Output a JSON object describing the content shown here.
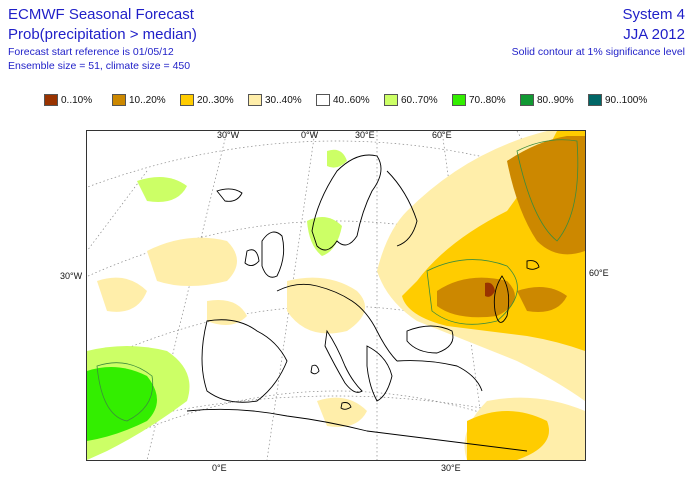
{
  "header": {
    "title": "ECMWF Seasonal Forecast",
    "subtitle": "Prob(precipitation > median)",
    "start_ref": "Forecast start reference is 01/05/12",
    "ensemble": "Ensemble size = 51, climate size = 450",
    "system": "System 4",
    "season": "JJA 2012",
    "contour_note": "Solid contour at 1% significance level"
  },
  "legend": [
    {
      "label": "0..10%",
      "color": "#993300"
    },
    {
      "label": "10..20%",
      "color": "#cc8800"
    },
    {
      "label": "20..30%",
      "color": "#ffcc00"
    },
    {
      "label": "30..40%",
      "color": "#ffeeaa"
    },
    {
      "label": "40..60%",
      "color": "#ffffff"
    },
    {
      "label": "60..70%",
      "color": "#ccff66"
    },
    {
      "label": "70..80%",
      "color": "#33ee00"
    },
    {
      "label": "80..90%",
      "color": "#119933"
    },
    {
      "label": "90..100%",
      "color": "#006666"
    }
  ],
  "grid_labels": {
    "top_30w": "30°W",
    "top_0w": "0°W",
    "top_30e": "30°E",
    "top_60e": "60°E",
    "left_30w": "30°W",
    "right_60e": "60°E",
    "bottom_0e": "0°E",
    "bottom_30e": "30°E"
  }
}
